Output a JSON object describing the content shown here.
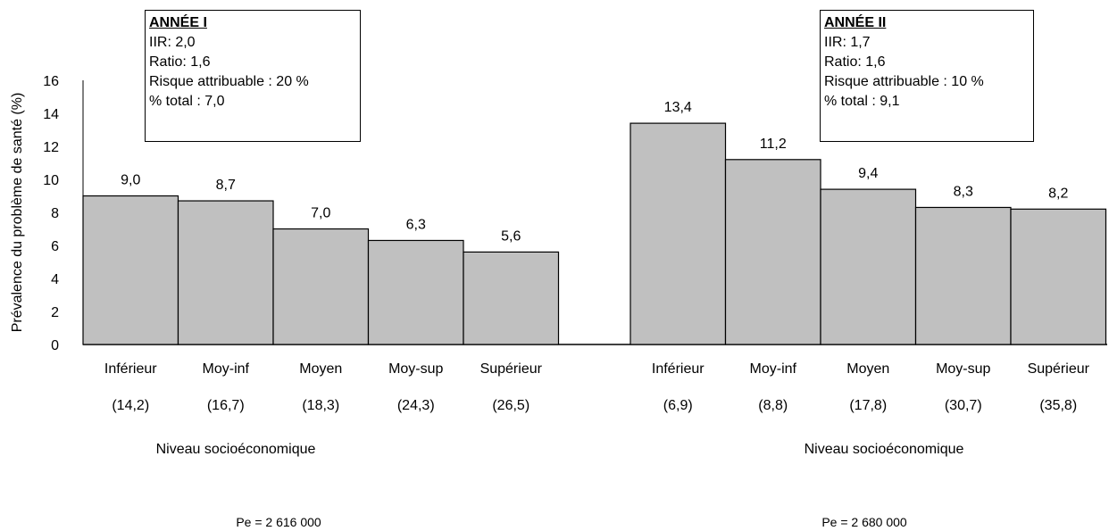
{
  "chart_data": {
    "type": "bar",
    "ylabel": "Prévalence du problème de santé (%)",
    "ylim": [
      0,
      16
    ],
    "yticks": [
      "0",
      "2",
      "4",
      "6",
      "8",
      "10",
      "12",
      "14",
      "16"
    ],
    "bar_color": "#c0c0c0",
    "panels": [
      {
        "info": {
          "title": "ANNÉE I",
          "lines": [
            "IIR: 2,0",
            "Ratio: 1,6",
            "Risque attribuable : 20 %",
            "% total : 7,0"
          ]
        },
        "categories": [
          "Inférieur",
          "Moy-inf",
          "Moyen",
          "Moy-sup",
          "Supérieur"
        ],
        "category_shares": [
          "(14,2)",
          "(16,7)",
          "(18,3)",
          "(24,3)",
          "(26,5)"
        ],
        "values": [
          9.0,
          8.7,
          7.0,
          6.3,
          5.6
        ],
        "value_labels": [
          "9,0",
          "8,7",
          "7,0",
          "6,3",
          "5,6"
        ],
        "xlabel": "Niveau socioéconomique",
        "population": "Pe = 2 616 000"
      },
      {
        "info": {
          "title": "ANNÉE II",
          "lines": [
            "IIR: 1,7",
            "Ratio: 1,6",
            "Risque attribuable : 10 %",
            "% total : 9,1"
          ]
        },
        "categories": [
          "Inférieur",
          "Moy-inf",
          "Moyen",
          "Moy-sup",
          "Supérieur"
        ],
        "category_shares": [
          "(6,9)",
          "(8,8)",
          "(17,8)",
          "(30,7)",
          "(35,8)"
        ],
        "values": [
          13.4,
          11.2,
          9.4,
          8.3,
          8.2
        ],
        "value_labels": [
          "13,4",
          "11,2",
          "9,4",
          "8,3",
          "8,2"
        ],
        "xlabel": "Niveau socioéconomique",
        "population": "Pe = 2 680 000"
      }
    ]
  }
}
